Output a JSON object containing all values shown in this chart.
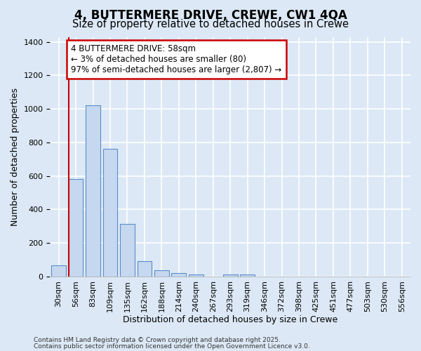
{
  "title_line1": "4, BUTTERMERE DRIVE, CREWE, CW1 4QA",
  "title_line2": "Size of property relative to detached houses in Crewe",
  "xlabel": "Distribution of detached houses by size in Crewe",
  "ylabel": "Number of detached properties",
  "categories": [
    "30sqm",
    "56sqm",
    "83sqm",
    "109sqm",
    "135sqm",
    "162sqm",
    "188sqm",
    "214sqm",
    "240sqm",
    "267sqm",
    "293sqm",
    "319sqm",
    "346sqm",
    "372sqm",
    "398sqm",
    "425sqm",
    "451sqm",
    "477sqm",
    "503sqm",
    "530sqm",
    "556sqm"
  ],
  "values": [
    65,
    580,
    1020,
    760,
    315,
    90,
    38,
    22,
    12,
    0,
    12,
    12,
    0,
    0,
    0,
    0,
    0,
    0,
    0,
    0,
    0
  ],
  "bar_color": "#c5d8f0",
  "bar_edge_color": "#5b8dc8",
  "bar_edge_width": 0.8,
  "vline_color": "#cc0000",
  "vline_x_index": 1,
  "annotation_text": "4 BUTTERMERE DRIVE: 58sqm\n← 3% of detached houses are smaller (80)\n97% of semi-detached houses are larger (2,807) →",
  "annotation_box_color": "#cc0000",
  "annotation_face_color": "white",
  "ylim": [
    0,
    1430
  ],
  "background_color": "#dce8f5",
  "grid_color": "white",
  "footer_line1": "Contains HM Land Registry data © Crown copyright and database right 2025.",
  "footer_line2": "Contains public sector information licensed under the Open Government Licence v3.0.",
  "title_fontsize": 12,
  "subtitle_fontsize": 10.5,
  "axis_label_fontsize": 9,
  "tick_fontsize": 8,
  "annotation_fontsize": 8.5,
  "footer_fontsize": 6.5
}
